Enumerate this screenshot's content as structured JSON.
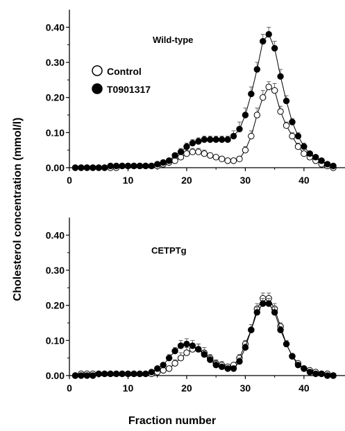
{
  "figure": {
    "ylabel": "Cholesterol concentration (mmol/l)",
    "xlabel": "Fraction number"
  },
  "legend": {
    "control_label": "Control",
    "treated_label": "T0901317"
  },
  "colors": {
    "ink": "#000000",
    "control_fill": "#ffffff",
    "treated_fill": "#000000",
    "errorbar": "#555555"
  },
  "chart_data": [
    {
      "type": "line",
      "title": "Wild-type",
      "xlabel": "Fraction number",
      "ylabel": "Cholesterol concentration (mmol/l)",
      "xlim": [
        0,
        47
      ],
      "ylim": [
        0,
        0.45
      ],
      "xticks": [
        0,
        10,
        20,
        30,
        40
      ],
      "xtick_labels": [
        "0",
        "10",
        "20",
        "30",
        "40"
      ],
      "yticks": [
        0,
        0.1,
        0.2,
        0.3,
        0.4
      ],
      "ytick_labels": [
        "0.00",
        "0.10",
        "0.20",
        "0.30",
        "0.40"
      ],
      "legend_position": "upper-left",
      "x": [
        1,
        2,
        3,
        4,
        5,
        6,
        7,
        8,
        9,
        10,
        11,
        12,
        13,
        14,
        15,
        16,
        17,
        18,
        19,
        20,
        21,
        22,
        23,
        24,
        25,
        26,
        27,
        28,
        29,
        30,
        31,
        32,
        33,
        34,
        35,
        36,
        37,
        38,
        39,
        40,
        41,
        42,
        43,
        44,
        45
      ],
      "series": [
        {
          "name": "Control",
          "marker": "open-circle",
          "values": [
            0.0,
            0.0,
            0.0,
            0.0,
            0.0,
            0.0,
            0.0,
            0.0,
            0.005,
            0.005,
            0.005,
            0.005,
            0.005,
            0.005,
            0.005,
            0.01,
            0.015,
            0.02,
            0.03,
            0.04,
            0.045,
            0.045,
            0.04,
            0.035,
            0.03,
            0.025,
            0.02,
            0.02,
            0.025,
            0.05,
            0.09,
            0.15,
            0.2,
            0.23,
            0.22,
            0.16,
            0.12,
            0.09,
            0.06,
            0.04,
            0.03,
            0.02,
            0.01,
            0.005,
            0.0
          ],
          "errors": [
            0,
            0,
            0,
            0,
            0,
            0,
            0,
            0,
            0,
            0,
            0,
            0,
            0,
            0,
            0,
            0,
            0,
            0,
            0.005,
            0.01,
            0.01,
            0.01,
            0.01,
            0.005,
            0,
            0,
            0,
            0,
            0.005,
            0.01,
            0.015,
            0.02,
            0.02,
            0.015,
            0.02,
            0.015,
            0.01,
            0.01,
            0.01,
            0.005,
            0,
            0,
            0,
            0,
            0
          ]
        },
        {
          "name": "T0901317",
          "marker": "filled-circle",
          "values": [
            0.0,
            0.0,
            0.0,
            0.0,
            0.0,
            0.0,
            0.005,
            0.005,
            0.005,
            0.005,
            0.005,
            0.005,
            0.005,
            0.005,
            0.01,
            0.015,
            0.02,
            0.035,
            0.045,
            0.06,
            0.07,
            0.075,
            0.08,
            0.08,
            0.08,
            0.08,
            0.08,
            0.09,
            0.11,
            0.15,
            0.21,
            0.28,
            0.36,
            0.38,
            0.34,
            0.26,
            0.19,
            0.13,
            0.09,
            0.06,
            0.04,
            0.03,
            0.02,
            0.01,
            0.005
          ],
          "errors": [
            0,
            0,
            0,
            0,
            0,
            0,
            0,
            0,
            0,
            0,
            0,
            0,
            0,
            0,
            0,
            0,
            0,
            0.005,
            0.01,
            0.01,
            0.01,
            0.01,
            0.01,
            0.01,
            0.01,
            0.01,
            0.01,
            0.015,
            0.02,
            0.02,
            0.02,
            0.02,
            0.02,
            0.02,
            0.02,
            0.02,
            0.015,
            0.01,
            0.01,
            0.01,
            0.005,
            0.005,
            0,
            0,
            0
          ]
        }
      ]
    },
    {
      "type": "line",
      "title": "CETPTg",
      "xlabel": "Fraction number",
      "ylabel": "Cholesterol concentration (mmol/l)",
      "xlim": [
        0,
        47
      ],
      "ylim": [
        0,
        0.45
      ],
      "xticks": [
        0,
        10,
        20,
        30,
        40
      ],
      "xtick_labels": [
        "0",
        "10",
        "20",
        "30",
        "40"
      ],
      "yticks": [
        0,
        0.1,
        0.2,
        0.3,
        0.4
      ],
      "ytick_labels": [
        "0.00",
        "0.10",
        "0.20",
        "0.30",
        "0.40"
      ],
      "x": [
        1,
        2,
        3,
        4,
        5,
        6,
        7,
        8,
        9,
        10,
        11,
        12,
        13,
        14,
        15,
        16,
        17,
        18,
        19,
        20,
        21,
        22,
        23,
        24,
        25,
        26,
        27,
        28,
        29,
        30,
        31,
        32,
        33,
        34,
        35,
        36,
        37,
        38,
        39,
        40,
        41,
        42,
        43,
        44,
        45
      ],
      "series": [
        {
          "name": "Control",
          "marker": "open-circle",
          "values": [
            0.0,
            0.005,
            0.005,
            0.005,
            0.005,
            0.005,
            0.005,
            0.005,
            0.005,
            0.005,
            0.005,
            0.005,
            0.005,
            0.005,
            0.01,
            0.015,
            0.02,
            0.035,
            0.05,
            0.065,
            0.075,
            0.075,
            0.065,
            0.05,
            0.035,
            0.03,
            0.025,
            0.03,
            0.05,
            0.09,
            0.13,
            0.19,
            0.22,
            0.22,
            0.19,
            0.14,
            0.09,
            0.055,
            0.035,
            0.02,
            0.015,
            0.01,
            0.005,
            0.005,
            0.0
          ],
          "errors": [
            0,
            0,
            0,
            0,
            0,
            0,
            0,
            0,
            0,
            0,
            0,
            0,
            0,
            0,
            0,
            0,
            0.005,
            0.01,
            0.015,
            0.015,
            0.015,
            0.015,
            0.015,
            0.01,
            0.01,
            0.01,
            0.005,
            0.005,
            0.01,
            0.01,
            0.015,
            0.015,
            0.015,
            0.015,
            0.015,
            0.01,
            0.01,
            0.005,
            0.005,
            0,
            0,
            0,
            0,
            0,
            0
          ]
        },
        {
          "name": "T0901317",
          "marker": "filled-circle",
          "values": [
            0.0,
            0.0,
            0.0,
            0.0,
            0.005,
            0.005,
            0.005,
            0.005,
            0.005,
            0.005,
            0.005,
            0.005,
            0.005,
            0.01,
            0.02,
            0.03,
            0.05,
            0.07,
            0.085,
            0.09,
            0.085,
            0.075,
            0.06,
            0.045,
            0.03,
            0.025,
            0.02,
            0.02,
            0.04,
            0.08,
            0.13,
            0.18,
            0.205,
            0.205,
            0.18,
            0.13,
            0.09,
            0.055,
            0.03,
            0.02,
            0.01,
            0.005,
            0.005,
            0.0,
            0.0
          ],
          "errors": [
            0,
            0,
            0,
            0,
            0,
            0,
            0,
            0,
            0,
            0,
            0,
            0,
            0,
            0,
            0,
            0.005,
            0.01,
            0.01,
            0.015,
            0.015,
            0.015,
            0.015,
            0.01,
            0.01,
            0.01,
            0.005,
            0.005,
            0.005,
            0.01,
            0.01,
            0.015,
            0.015,
            0.015,
            0.015,
            0.015,
            0.01,
            0.01,
            0.005,
            0.005,
            0,
            0,
            0,
            0,
            0,
            0
          ]
        }
      ]
    }
  ]
}
